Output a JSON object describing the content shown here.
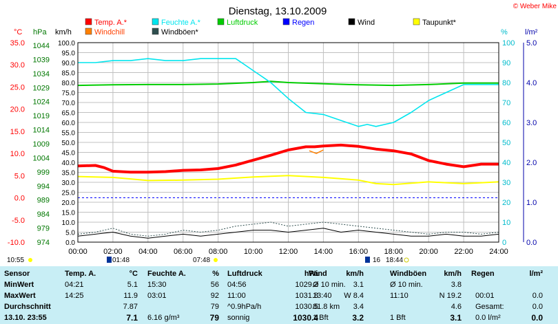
{
  "title": "Dienstag, 13.10.2009",
  "credit": "© Weber Mike",
  "colors": {
    "temp": "#ff0000",
    "humidity": "#00e5ee",
    "pressure": "#00cc00",
    "rain": "#0000ff",
    "wind": "#000000",
    "dewpoint": "#ffff00",
    "windchill": "#ff8000",
    "gust": "#2f4f4f",
    "zero_line": "#0000ff",
    "table_bg": "#c8eef5"
  },
  "legend": [
    {
      "label": "Temp. A.*",
      "color": "#ff0000"
    },
    {
      "label": "Feuchte A.*",
      "color": "#00e5ee"
    },
    {
      "label": "Luftdruck",
      "color": "#00cc00"
    },
    {
      "label": "Regen",
      "color": "#0000ff"
    },
    {
      "label": "Wind",
      "color": "#000000"
    },
    {
      "label": "Taupunkt*",
      "color": "#ffff00"
    },
    {
      "label": "Windchill",
      "color": "#ff8000"
    },
    {
      "label": "Windböen*",
      "color": "#2f4f4f"
    }
  ],
  "axis_units": {
    "temp": "°C",
    "pressure": "hPa",
    "wind": "km/h",
    "humidity": "%",
    "rain": "l/m²"
  },
  "axis_ticks": {
    "temp": [
      "35.0",
      "30.0",
      "25.0",
      "20.0",
      "15.0",
      "10.0",
      "5.0",
      "0.0",
      "-5.0",
      "-10.0"
    ],
    "pressure": [
      "1044",
      "1039",
      "1034",
      "1029",
      "1024",
      "1019",
      "1014",
      "1009",
      "1004",
      "999",
      "994",
      "989",
      "984",
      "979",
      "974"
    ],
    "wind": [
      "100.0",
      "95.0",
      "90.0",
      "85.0",
      "80.0",
      "75.0",
      "70.0",
      "65.0",
      "60.0",
      "55.0",
      "50.0",
      "45.0",
      "40.0",
      "35.0",
      "30.0",
      "25.0",
      "20.0",
      "15.0",
      "10.0",
      "5.0",
      "0.0"
    ],
    "humidity": [
      "100",
      "90",
      "80",
      "70",
      "60",
      "50",
      "40",
      "30",
      "20",
      "10",
      "0"
    ],
    "rain": [
      "5.0",
      "4.0",
      "3.0",
      "2.0",
      "1.0",
      "0.0"
    ],
    "x": [
      "00:00",
      "02:00",
      "04:00",
      "06:00",
      "08:00",
      "10:00",
      "12:00",
      "14:00",
      "16:00",
      "18:00",
      "20:00",
      "22:00",
      "24:00"
    ]
  },
  "sun_markers": {
    "sunrise_text": "10:55",
    "moon_text_1": "01:48",
    "moon_text_2": "07:48",
    "moon_text_3": "16",
    "moon_text_4": "18:44"
  },
  "chart_data": {
    "type": "line",
    "title": "Dienstag, 13.10.2009",
    "x_unit": "hour of day",
    "xlim": [
      0,
      24
    ],
    "series": [
      {
        "name": "Temp. A.*",
        "axis": "temp",
        "ylim": [
          -10,
          35
        ],
        "x": [
          0,
          1,
          1.5,
          2,
          3,
          4,
          5,
          6,
          7,
          8,
          9,
          10,
          11,
          12,
          13,
          13.5,
          14,
          15,
          16,
          17,
          18,
          19,
          20,
          21,
          22,
          23,
          24
        ],
        "values": [
          7.2,
          7.3,
          6.8,
          6.0,
          5.8,
          5.8,
          5.9,
          6.2,
          6.3,
          6.6,
          7.4,
          8.5,
          9.6,
          10.8,
          11.5,
          11.5,
          11.7,
          11.9,
          11.6,
          11.0,
          10.6,
          9.9,
          8.4,
          7.6,
          7.0,
          7.6,
          7.6
        ]
      },
      {
        "name": "Feuchte A.*",
        "axis": "humidity",
        "ylim": [
          0,
          100
        ],
        "x": [
          0,
          1,
          2,
          3,
          4,
          5,
          6,
          7,
          8,
          9,
          9.5,
          10,
          11,
          12,
          13,
          14,
          15,
          16,
          16.5,
          17,
          18,
          19,
          20,
          21,
          22,
          23,
          24
        ],
        "values": [
          90,
          90,
          91,
          91,
          92,
          91,
          91,
          92,
          92,
          92,
          89,
          86,
          80,
          72,
          65,
          64,
          61,
          58,
          59,
          58,
          60,
          65,
          71,
          75,
          79,
          79,
          79
        ]
      },
      {
        "name": "Luftdruck",
        "axis": "pressure",
        "ylim": [
          974,
          1044
        ],
        "x": [
          0,
          2,
          4,
          6,
          8,
          10,
          11,
          12,
          14,
          16,
          18,
          20,
          22,
          24
        ],
        "values": [
          1029.0,
          1029.2,
          1029.3,
          1029.3,
          1029.5,
          1030.0,
          1030.4,
          1030.0,
          1029.6,
          1029.2,
          1029.0,
          1029.3,
          1029.8,
          1029.8
        ]
      },
      {
        "name": "Taupunkt*",
        "axis": "temp",
        "ylim": [
          -10,
          35
        ],
        "x": [
          0,
          2,
          4,
          6,
          8,
          10,
          12,
          14,
          16,
          17,
          18,
          20,
          22,
          24
        ],
        "values": [
          4.8,
          4.6,
          3.9,
          4.0,
          4.2,
          4.7,
          5.0,
          4.6,
          4.0,
          3.2,
          3.0,
          3.6,
          3.2,
          3.6
        ]
      },
      {
        "name": "Windchill",
        "axis": "temp",
        "ylim": [
          -10,
          35
        ],
        "x": [
          13.2,
          13.6,
          14.0
        ],
        "values": [
          10.6,
          10.0,
          10.8
        ]
      },
      {
        "name": "Wind",
        "axis": "wind",
        "ylim": [
          0,
          100
        ],
        "x": [
          0,
          1,
          2,
          3,
          4,
          5,
          6,
          7,
          8,
          9,
          10,
          11,
          12,
          13,
          14,
          15,
          16,
          17,
          18,
          19,
          20,
          21,
          22,
          23,
          24
        ],
        "values": [
          3,
          4,
          5,
          3,
          2,
          3,
          4,
          3,
          4,
          5,
          6,
          6,
          5,
          6,
          7,
          5,
          6,
          5,
          4,
          3,
          3,
          4,
          3,
          3,
          4
        ]
      },
      {
        "name": "Windböen*",
        "axis": "wind",
        "ylim": [
          0,
          100
        ],
        "x": [
          0,
          1,
          2,
          3,
          4,
          5,
          6,
          7,
          8,
          9,
          10,
          11,
          12,
          13,
          14,
          15,
          16,
          17,
          18,
          19,
          20,
          21,
          22,
          23,
          24
        ],
        "values": [
          4,
          5,
          7,
          4,
          3,
          4,
          6,
          5,
          6,
          8,
          9,
          10,
          8,
          9,
          10,
          9,
          8,
          7,
          6,
          5,
          4,
          5,
          5,
          4,
          5
        ]
      }
    ],
    "reference_line": {
      "axis": "temp",
      "value": 0.0
    }
  },
  "table": {
    "headers": [
      "Sensor",
      "Temp. A.",
      "°C",
      "Feuchte A.",
      "%",
      "Luftdruck",
      "hPa",
      "Wind",
      "km/h",
      "Windböen",
      "km/h",
      "Regen",
      "l/m²"
    ],
    "rows": [
      {
        "label": "MinWert",
        "temp_time": "04:21",
        "temp": "5.1",
        "hum_time": "15:30",
        "hum": "56",
        "pres_time": "04:56",
        "pres": "1029.2",
        "wind_desc": "Ø 10 min.",
        "wind": "3.1",
        "gust_desc": "Ø 10 min.",
        "gust": "3.8",
        "rain_desc": "",
        "rain": ""
      },
      {
        "label": "MaxWert",
        "temp_time": "14:25",
        "temp": "11.9",
        "hum_time": "03:01",
        "hum": "92",
        "pres_time": "11:00",
        "pres": "1031.8",
        "wind_desc": "13:40",
        "wind": "W 8.4",
        "gust_desc": "11:10",
        "gust": "N 19.2",
        "rain_desc": "00:01",
        "rain": "0.0"
      },
      {
        "label": "Durchschnitt",
        "temp_time": "",
        "temp": "7.87",
        "hum_time": "",
        "hum": "79",
        "pres_time": "^0.9hPa/h",
        "pres": "1030.5",
        "wind_desc": "81.8 km",
        "wind": "3.4",
        "gust_desc": "",
        "gust": "4.6",
        "rain_desc": "Gesamt:",
        "rain": "0.0"
      },
      {
        "label": "13.10. 23:55",
        "temp_time": "",
        "temp": "7.1",
        "hum_time": "6.16 g/m³",
        "hum": "79",
        "pres_time": "sonnig",
        "pres": "1030.4",
        "wind_desc": "1 Bft",
        "wind": "3.2",
        "gust_desc": "1 Bft",
        "gust": "3.1",
        "rain_desc": "0.0 l/m²",
        "rain": "0.0"
      }
    ]
  }
}
